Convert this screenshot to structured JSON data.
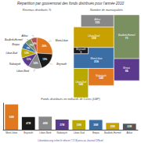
{
  "title": "Répartition par gouvernorat des fonds distribués pour l'année 2010",
  "annotations": [
    "Libandata.org selon le décret 7.174 paru au Journal Officiel"
  ],
  "chart_data": [
    {
      "type": "pie",
      "title": "Revenus distribués %",
      "categories": [
        "Mont-Liban",
        "Beyrouth",
        "Liban-Nord",
        "Nabatiych",
        "Liban-Sud",
        "Beqaa",
        "Baalbek-Hermel",
        "Akkar"
      ],
      "values": [
        26,
        19,
        14,
        11,
        10,
        7,
        7,
        6
      ],
      "value_labels": [
        "26%",
        "19%",
        "14%",
        "11%",
        "10%",
        "7%",
        "7%",
        "6%"
      ],
      "colors": [
        "#E07820",
        "#1A1A1A",
        "#888888",
        "#5B3A8E",
        "#B8A800",
        "#3A6EA5",
        "#7A9060",
        "#B05050"
      ],
      "data_labels": true
    },
    {
      "type": "map",
      "title": "Nombre de municipalités",
      "categories": [
        "Akkar",
        "Liban-Nord",
        "Baalbek-Hermel",
        "Beyrouth",
        "Mont-Liban",
        "Beqaa",
        "Nabatiych",
        "Liban-Sud"
      ],
      "values": [
        155,
        158,
        71,
        1,
        216,
        96,
        145,
        145
      ],
      "colors": [
        "#888888",
        "#C8A000",
        "#7A9060",
        "#1A1A1A",
        "#3A6EA5",
        "#5B3A8E",
        "#E07820",
        "#B8A800"
      ],
      "data_labels": true
    },
    {
      "type": "bar",
      "title": "Fonds distribués en milliards de Livres (LBP)",
      "categories": [
        "Mont-Liban",
        "Beyrouth",
        "Liban-Nord",
        "Nabatiych",
        "Liban-Sud",
        "Beqaa",
        "Baalbek-Hermel",
        "Akkar"
      ],
      "values": [
        93,
        47,
        48,
        37,
        35,
        36,
        25,
        22
      ],
      "value_labels": [
        "93M",
        "47M",
        "48M",
        "37M",
        "35M",
        "36M",
        "25M",
        "22M"
      ],
      "colors": [
        "#E07820",
        "#1A1A1A",
        "#888888",
        "#5B3A8E",
        "#B8A800",
        "#3A6EA5",
        "#C8A000",
        "#555555"
      ],
      "ylim": [
        0,
        97.65
      ],
      "yticks": [],
      "tick_labels": "x",
      "grid": false,
      "data_labels": true
    }
  ]
}
